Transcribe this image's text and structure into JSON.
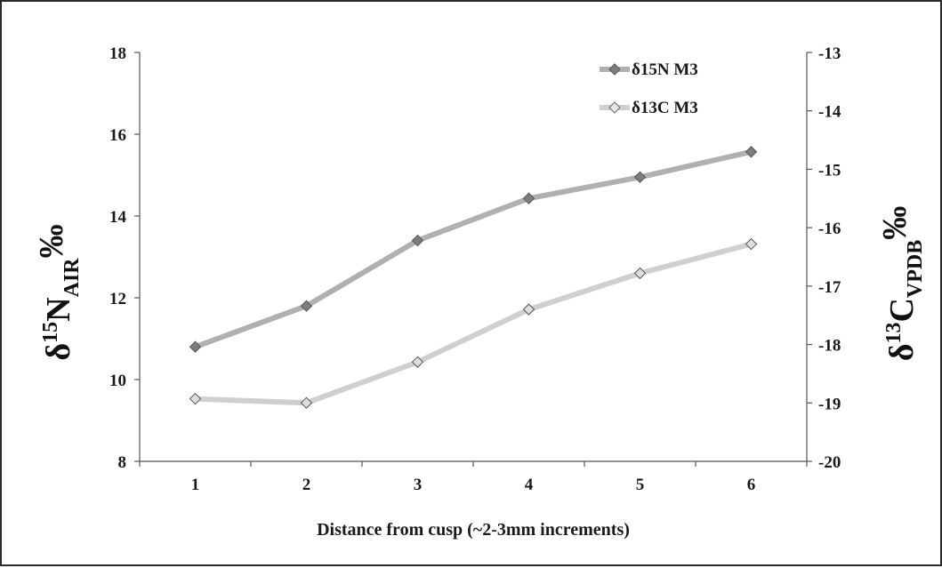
{
  "chart_data": {
    "type": "line",
    "title": "",
    "x": [
      1,
      2,
      3,
      4,
      5,
      6
    ],
    "xlabel": "Distance from cusp (~2-3mm increments)",
    "ylabel_left": {
      "delta": "δ",
      "sup": "15",
      "element": "N",
      "sub": "AIR",
      "unit": "‰"
    },
    "ylabel_right": {
      "delta": "δ",
      "sup": "13",
      "element": "C",
      "sub": "VPDB",
      "unit": "‰"
    },
    "ylim_left": [
      8,
      18
    ],
    "yticks_left": [
      "8",
      "10",
      "12",
      "14",
      "16",
      "18"
    ],
    "ylim_right": [
      -20,
      -13
    ],
    "yticks_right": [
      "-13",
      "-14",
      "-15",
      "-16",
      "-17",
      "-18",
      "-19",
      "-20"
    ],
    "xticks": [
      "1",
      "2",
      "3",
      "4",
      "5",
      "6"
    ],
    "grid": false,
    "legend_position": "top-right",
    "series": [
      {
        "name": "δ15N M3",
        "axis": "left",
        "color": "#b0b0b0",
        "marker_color": "#7d7d7d",
        "values": [
          10.8,
          11.8,
          13.4,
          14.43,
          14.95,
          15.57
        ]
      },
      {
        "name": "δ13C M3",
        "axis": "right",
        "color": "#cfcfcf",
        "marker_color": "#dedede",
        "values": [
          -18.93,
          -19.0,
          -18.3,
          -17.4,
          -16.78,
          -16.28
        ]
      }
    ]
  }
}
